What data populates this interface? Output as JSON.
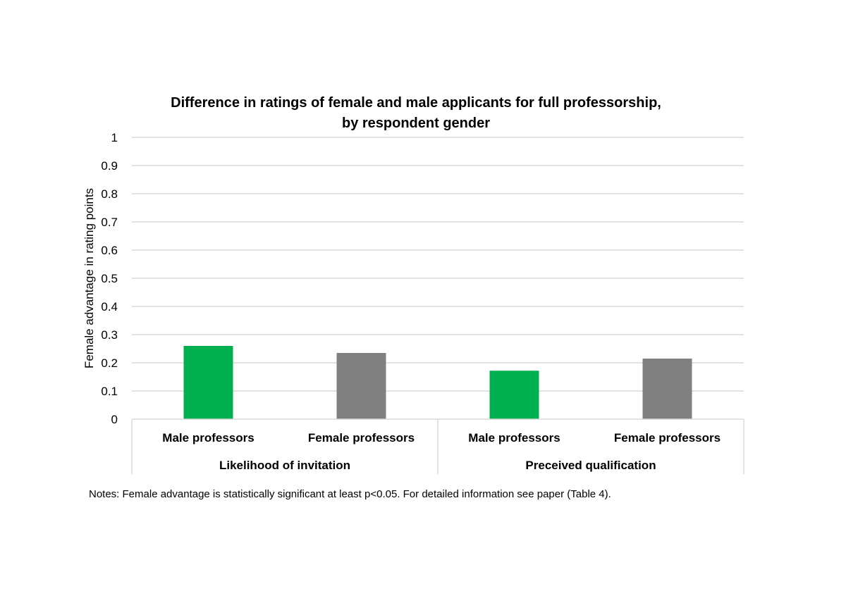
{
  "chart_data": {
    "type": "bar",
    "title": "Difference in ratings of female and male applicants for full professorship,",
    "title_line2": "by respondent gender",
    "ylabel": "Female advantage in rating points",
    "xlabel": "",
    "ylim": [
      0,
      1
    ],
    "yticks": [
      "0",
      "0.1",
      "0.2",
      "0.3",
      "0.4",
      "0.5",
      "0.6",
      "0.7",
      "0.8",
      "0.9",
      "1"
    ],
    "grid": true,
    "groups": [
      {
        "label": "Likelihood of invitation",
        "bars": [
          {
            "category": "Male professors",
            "value": 0.26,
            "color": "#00b050"
          },
          {
            "category": "Female professors",
            "value": 0.235,
            "color": "#808080"
          }
        ]
      },
      {
        "label": "Preceived qualification",
        "bars": [
          {
            "category": "Male professors",
            "value": 0.172,
            "color": "#00b050"
          },
          {
            "category": "Female professors",
            "value": 0.215,
            "color": "#808080"
          }
        ]
      }
    ],
    "note": "Notes: Female advantage is statistically significant at least p<0.05. For detailed information see paper (Table 4)."
  }
}
